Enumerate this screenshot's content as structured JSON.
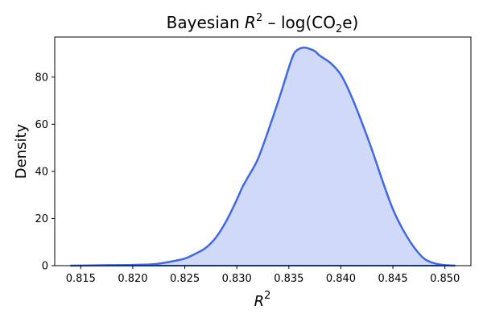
{
  "chart_data": {
    "type": "area",
    "title": {
      "prefix": "Bayesian ",
      "r": "R",
      "r_sup": "2",
      "mid": " – log(CO",
      "co2_sub": "2",
      "suffix": "e)"
    },
    "xlabel": {
      "base": "R",
      "sup": "2"
    },
    "ylabel": "Density",
    "xlim": [
      0.8125,
      0.8525
    ],
    "ylim": [
      0,
      97
    ],
    "xticks": [
      0.815,
      0.82,
      0.825,
      0.83,
      0.835,
      0.84,
      0.845,
      0.85
    ],
    "xtick_labels": [
      "0.815",
      "0.820",
      "0.825",
      "0.830",
      "0.835",
      "0.840",
      "0.845",
      "0.850"
    ],
    "yticks": [
      0,
      20,
      40,
      60,
      80
    ],
    "ytick_labels": [
      "0",
      "20",
      "40",
      "60",
      "80"
    ],
    "grid": false,
    "legend": "none",
    "series": [
      {
        "x": [
          0.814,
          0.816,
          0.818,
          0.82,
          0.822,
          0.823,
          0.824,
          0.825,
          0.826,
          0.827,
          0.828,
          0.829,
          0.83,
          0.8305,
          0.831,
          0.832,
          0.833,
          0.834,
          0.835,
          0.8355,
          0.836,
          0.8365,
          0.837,
          0.8375,
          0.838,
          0.839,
          0.84,
          0.841,
          0.842,
          0.843,
          0.844,
          0.845,
          0.846,
          0.847,
          0.848,
          0.849,
          0.85,
          0.851
        ],
        "y": [
          0.0,
          0.1,
          0.2,
          0.3,
          0.6,
          1.2,
          2.0,
          3.0,
          5.0,
          7.5,
          12.0,
          19.0,
          28.0,
          33.0,
          37.0,
          45.0,
          57.0,
          70.0,
          84.0,
          90.0,
          92.0,
          92.5,
          92.0,
          91.0,
          89.0,
          86.0,
          81.0,
          72.0,
          61.0,
          49.0,
          36.0,
          24.0,
          15.0,
          8.0,
          3.0,
          1.0,
          0.2,
          0.0
        ]
      }
    ],
    "colors": {
      "line": "#4169e1",
      "fill": "#d0d9f7",
      "axes": "#000000"
    }
  }
}
